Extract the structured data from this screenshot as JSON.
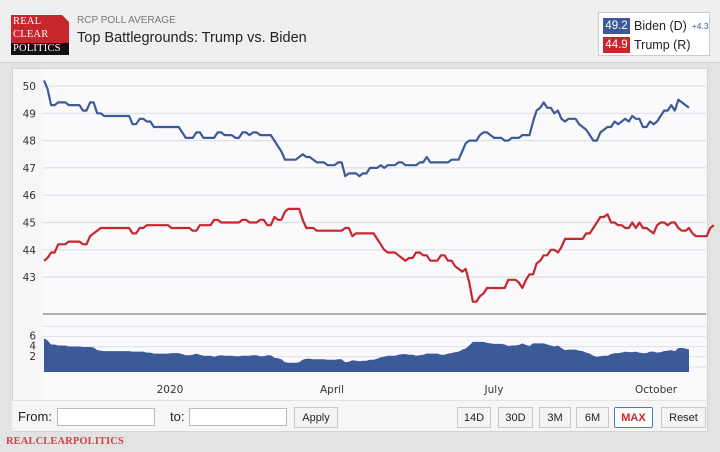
{
  "header": {
    "logo_lines": [
      "REAL",
      "CLEAR",
      "POLITICS"
    ],
    "kicker": "RCP POLL AVERAGE",
    "title": "Top Battlegrounds: Trump vs. Biden"
  },
  "legend": [
    {
      "value": "49.2",
      "name": "Biden (D)",
      "spread": "+4.3",
      "color": "#3d5a98"
    },
    {
      "value": "44.9",
      "name": "Trump (R)",
      "spread": "",
      "color": "#c6262c"
    }
  ],
  "controls": {
    "from_label": "From:",
    "to_label": "to:",
    "from_value": "",
    "to_value": "",
    "apply_label": "Apply",
    "range_buttons": [
      "14D",
      "30D",
      "3M",
      "6M",
      "MAX"
    ],
    "active_range": "MAX",
    "reset_label": "Reset"
  },
  "footer": "REALCLEARPOLITICS",
  "chart_data": {
    "type": "line",
    "title": "Top Battlegrounds: Trump vs. Biden",
    "subtitle": "RCP POLL AVERAGE",
    "xlabel": "",
    "ylabel": "",
    "x_tick_labels": [
      "2020",
      "April",
      "July",
      "October"
    ],
    "main_y_ticks": [
      43,
      44,
      45,
      46,
      47,
      48,
      49,
      50
    ],
    "main_ylim": [
      42,
      50.4
    ],
    "spread_y_ticks": [
      2,
      4,
      6
    ],
    "spread_ylim": [
      0,
      8
    ],
    "grid": true,
    "legend_position": "top-right",
    "x_range_months": [
      "2019-10",
      "2020-10"
    ],
    "series": [
      {
        "name": "Biden (D)",
        "color": "#3d5a98",
        "values": [
          50.2,
          49.9,
          49.3,
          49.3,
          49.4,
          49.4,
          49.4,
          49.3,
          49.3,
          49.3,
          49.3,
          49.1,
          49.1,
          49.4,
          49.4,
          49.0,
          49.0,
          48.9,
          48.9,
          48.9,
          48.9,
          48.9,
          48.9,
          48.9,
          48.9,
          48.6,
          48.6,
          48.8,
          48.8,
          48.7,
          48.7,
          48.5,
          48.5,
          48.5,
          48.5,
          48.5,
          48.5,
          48.5,
          48.5,
          48.3,
          48.1,
          48.1,
          48.1,
          48.3,
          48.3,
          48.1,
          48.1,
          48.1,
          48.1,
          48.3,
          48.3,
          48.2,
          48.2,
          48.2,
          48.1,
          48.1,
          48.3,
          48.3,
          48.2,
          48.3,
          48.3,
          48.2,
          48.2,
          48.2,
          48.2,
          48.0,
          47.8,
          47.6,
          47.3,
          47.3,
          47.3,
          47.3,
          47.4,
          47.5,
          47.4,
          47.4,
          47.3,
          47.2,
          47.2,
          47.2,
          47.1,
          47.1,
          47.1,
          47.2,
          47.2,
          46.7,
          46.8,
          46.8,
          46.8,
          46.7,
          46.8,
          46.8,
          47.0,
          47.0,
          47.0,
          47.1,
          47.0,
          47.1,
          47.1,
          47.1,
          47.2,
          47.2,
          47.1,
          47.1,
          47.1,
          47.1,
          47.2,
          47.2,
          47.4,
          47.2,
          47.2,
          47.2,
          47.2,
          47.2,
          47.2,
          47.3,
          47.3,
          47.3,
          47.6,
          47.9,
          48.0,
          48.0,
          48.0,
          48.2,
          48.3,
          48.3,
          48.2,
          48.1,
          48.1,
          48.1,
          48.0,
          48.0,
          48.1,
          48.1,
          48.1,
          48.2,
          48.2,
          48.2,
          48.7,
          49.1,
          49.2,
          49.4,
          49.2,
          49.2,
          49.0,
          49.1,
          48.8,
          48.7,
          48.8,
          48.8,
          48.8,
          48.6,
          48.5,
          48.4,
          48.2,
          48.0,
          48.0,
          48.3,
          48.4,
          48.5,
          48.5,
          48.7,
          48.6,
          48.7,
          48.8,
          48.7,
          48.9,
          48.8,
          48.8,
          48.5,
          48.5,
          48.7,
          48.6,
          48.7,
          48.9,
          49.1,
          49.1,
          49.3,
          49.1,
          49.5,
          49.4,
          49.3,
          49.2
        ]
      },
      {
        "name": "Trump (R)",
        "color": "#c6262c",
        "values": [
          43.6,
          43.7,
          43.9,
          43.9,
          44.2,
          44.2,
          44.2,
          44.3,
          44.3,
          44.3,
          44.3,
          44.2,
          44.2,
          44.5,
          44.6,
          44.7,
          44.8,
          44.8,
          44.8,
          44.8,
          44.8,
          44.8,
          44.8,
          44.8,
          44.8,
          44.6,
          44.6,
          44.8,
          44.8,
          44.9,
          44.9,
          44.9,
          44.9,
          44.9,
          44.9,
          44.9,
          44.8,
          44.8,
          44.8,
          44.8,
          44.8,
          44.8,
          44.7,
          44.7,
          44.9,
          44.9,
          44.9,
          44.9,
          45.1,
          45.1,
          45.0,
          45.0,
          45.0,
          45.0,
          45.0,
          45.0,
          45.1,
          45.1,
          45.0,
          45.0,
          45.0,
          45.1,
          45.1,
          44.9,
          44.9,
          45.2,
          45.1,
          45.1,
          45.4,
          45.5,
          45.5,
          45.5,
          45.5,
          45.1,
          44.8,
          44.8,
          44.8,
          44.7,
          44.7,
          44.7,
          44.7,
          44.7,
          44.7,
          44.7,
          44.7,
          44.8,
          44.8,
          44.5,
          44.6,
          44.6,
          44.6,
          44.6,
          44.6,
          44.6,
          44.4,
          44.2,
          44.0,
          43.9,
          43.9,
          43.9,
          43.8,
          43.7,
          43.6,
          43.7,
          43.7,
          43.9,
          43.9,
          43.8,
          43.8,
          43.6,
          43.6,
          43.6,
          43.8,
          43.8,
          43.6,
          43.6,
          43.4,
          43.3,
          43.2,
          43.3,
          42.8,
          42.1,
          42.1,
          42.3,
          42.4,
          42.6,
          42.6,
          42.6,
          42.6,
          42.6,
          42.6,
          42.9,
          42.9,
          42.9,
          42.8,
          42.6,
          42.9,
          43.1,
          43.1,
          43.5,
          43.6,
          43.8,
          43.8,
          44.0,
          44.0,
          43.9,
          44.1,
          44.4,
          44.4,
          44.4,
          44.4,
          44.4,
          44.4,
          44.6,
          44.6,
          44.8,
          45.0,
          45.2,
          45.2,
          45.3,
          45.0,
          45.0,
          44.9,
          44.9,
          44.8,
          44.8,
          45.0,
          44.8,
          45.0,
          44.8,
          44.8,
          44.7,
          44.6,
          44.9,
          45.0,
          45.0,
          44.9,
          45.0,
          45.0,
          44.8,
          44.7,
          44.7,
          44.8,
          44.6,
          44.5,
          44.5,
          44.5,
          44.5,
          44.8,
          44.9
        ]
      },
      {
        "name": "Spread (Biden lead)",
        "color": "#3d5a98",
        "type": "area",
        "derived": "Biden (D) minus Trump (R)"
      }
    ]
  }
}
